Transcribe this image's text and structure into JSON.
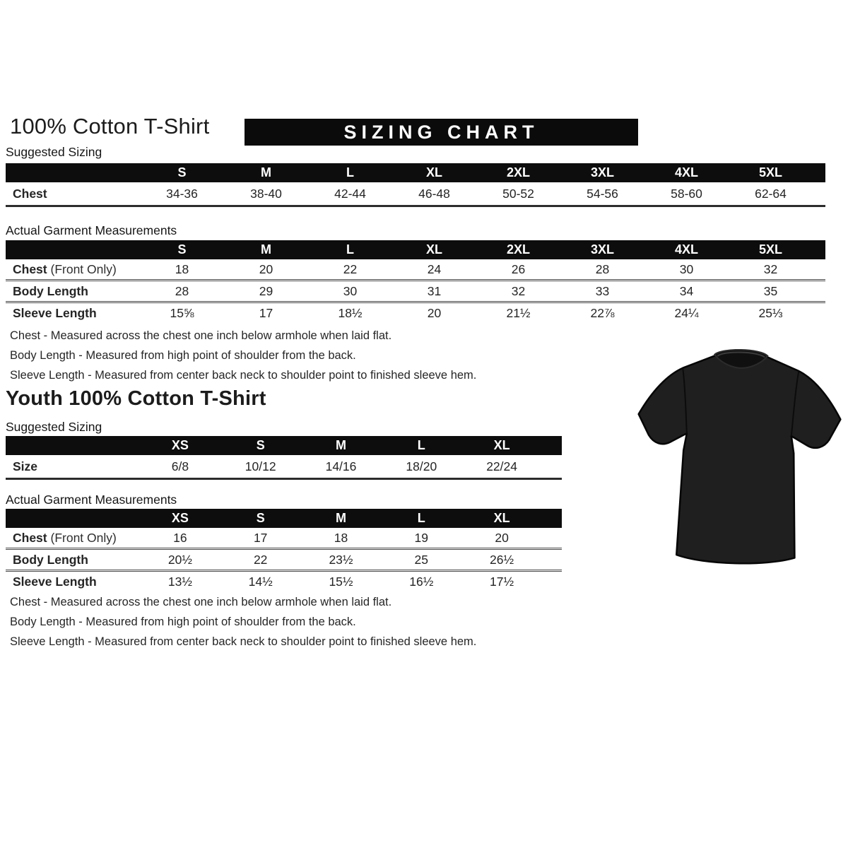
{
  "adult": {
    "title": "100% Cotton T-Shirt",
    "banner": "SIZING CHART",
    "suggested_label": "Suggested Sizing",
    "suggested": {
      "columns": [
        "S",
        "M",
        "L",
        "XL",
        "2XL",
        "3XL",
        "4XL",
        "5XL"
      ],
      "rows": [
        {
          "label": "Chest",
          "suffix": "",
          "values": [
            "34-36",
            "38-40",
            "42-44",
            "46-48",
            "50-52",
            "54-56",
            "58-60",
            "62-64"
          ]
        }
      ]
    },
    "actual_label": "Actual Garment Measurements",
    "actual": {
      "columns": [
        "S",
        "M",
        "L",
        "XL",
        "2XL",
        "3XL",
        "4XL",
        "5XL"
      ],
      "rows": [
        {
          "label": "Chest",
          "suffix": "(Front Only)",
          "values": [
            "18",
            "20",
            "22",
            "24",
            "26",
            "28",
            "30",
            "32"
          ]
        },
        {
          "label": "Body Length",
          "suffix": "",
          "values": [
            "28",
            "29",
            "30",
            "31",
            "32",
            "33",
            "34",
            "35"
          ]
        },
        {
          "label": "Sleeve Length",
          "suffix": "",
          "values": [
            "15⅝",
            "17",
            "18½",
            "20",
            "21½",
            "22⅞",
            "24¼",
            "25⅓"
          ]
        }
      ]
    },
    "notes": [
      "Chest - Measured across the chest one inch below armhole when laid flat.",
      "Body Length - Measured from high point of shoulder from the back.",
      "Sleeve Length - Measured from center back neck to shoulder point to finished sleeve hem."
    ]
  },
  "youth": {
    "title": "Youth 100% Cotton T-Shirt",
    "suggested_label": "Suggested Sizing",
    "suggested": {
      "columns": [
        "XS",
        "S",
        "M",
        "L",
        "XL"
      ],
      "rows": [
        {
          "label": "Size",
          "suffix": "",
          "values": [
            "6/8",
            "10/12",
            "14/16",
            "18/20",
            "22/24"
          ]
        }
      ]
    },
    "actual_label": "Actual Garment Measurements",
    "actual": {
      "columns": [
        "XS",
        "S",
        "M",
        "L",
        "XL"
      ],
      "rows": [
        {
          "label": "Chest",
          "suffix": "(Front Only)",
          "values": [
            "16",
            "17",
            "18",
            "19",
            "20"
          ]
        },
        {
          "label": "Body Length",
          "suffix": "",
          "values": [
            "20½",
            "22",
            "23½",
            "25",
            "26½"
          ]
        },
        {
          "label": "Sleeve Length",
          "suffix": "",
          "values": [
            "13½",
            "14½",
            "15½",
            "16½",
            "17½"
          ]
        }
      ]
    },
    "notes": [
      "Chest - Measured across the chest one inch below armhole when laid flat.",
      "Body Length - Measured from high point of shoulder from the back.",
      "Sleeve Length - Measured from center back neck to shoulder point to finished sleeve hem."
    ]
  },
  "product_image": {
    "label": "black-t-shirt",
    "shirt_color": "#1f1f1f",
    "collar_color": "#101010",
    "outline_color": "#060606"
  },
  "colors": {
    "banner_bg": "#0b0b0b",
    "header_bg": "#0d0d0d",
    "text": "#1c1c1c",
    "page_bg": "#ffffff"
  }
}
